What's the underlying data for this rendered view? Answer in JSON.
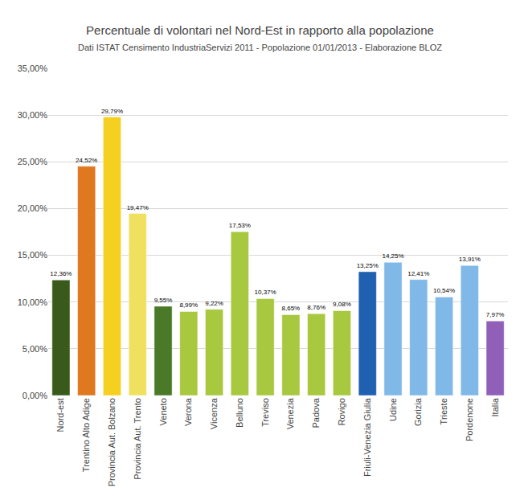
{
  "chart_data": {
    "type": "bar",
    "title": "Percentuale di volontari nel Nord-Est in rapporto alla popolazione",
    "subtitle": "Dati ISTAT Censimento IndustriaServizi 2011 - Popolazione 01/01/2013 - Elaborazione BLOZ",
    "categories": [
      "Nord-est",
      "Trentino Alto Adige",
      "Provincia Aut. Bolzano",
      "Provincia Aut. Trento",
      "Veneto",
      "Verona",
      "Vicenza",
      "Belluno",
      "Treviso",
      "Venezia",
      "Padova",
      "Rovigo",
      "Friuli-Venezia Giulia",
      "Udine",
      "Gorizia",
      "Trieste",
      "Pordenone",
      "Italia"
    ],
    "values": [
      12.36,
      24.52,
      29.79,
      19.47,
      9.55,
      8.99,
      9.22,
      17.53,
      10.37,
      8.65,
      8.76,
      9.08,
      13.25,
      14.25,
      12.41,
      10.54,
      13.91,
      7.97
    ],
    "value_labels": [
      "12,36%",
      "24,52%",
      "29,79%",
      "19,47%",
      "9,55%",
      "8,99%",
      "9,22%",
      "17,53%",
      "10,37%",
      "8,65%",
      "8,76%",
      "9,08%",
      "13,25%",
      "14,25%",
      "12,41%",
      "10,54%",
      "13,91%",
      "7,97%"
    ],
    "colors": [
      "#3a5a1c",
      "#e07820",
      "#f5d020",
      "#f0e060",
      "#4a7a28",
      "#a8c840",
      "#a8c840",
      "#a8c840",
      "#a8c840",
      "#a8c840",
      "#a8c840",
      "#a8c840",
      "#2060b0",
      "#80b8e8",
      "#80b8e8",
      "#80b8e8",
      "#80b8e8",
      "#9060b8"
    ],
    "ylim": [
      0,
      35
    ],
    "yticks": [
      {
        "value": 0,
        "label": "0,00%"
      },
      {
        "value": 5,
        "label": "5,00%"
      },
      {
        "value": 10,
        "label": "10,00%"
      },
      {
        "value": 15,
        "label": "15,00%"
      },
      {
        "value": 20,
        "label": "20,00%"
      },
      {
        "value": 25,
        "label": "25,00%"
      },
      {
        "value": 30,
        "label": "30,00%"
      },
      {
        "value": 35,
        "label": "35,00%"
      }
    ],
    "grid": true,
    "data_labels": true
  }
}
